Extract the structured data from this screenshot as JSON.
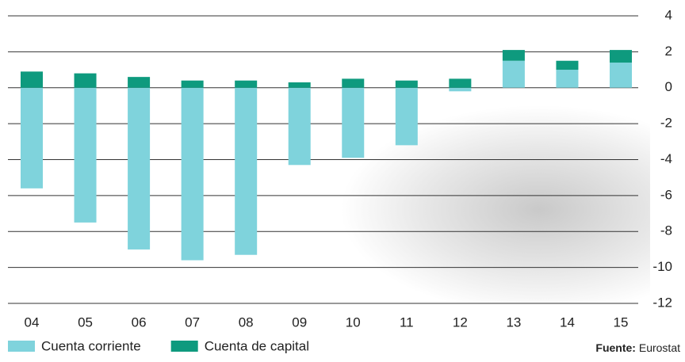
{
  "chart_data": {
    "type": "stacked_bar",
    "categories": [
      "04",
      "05",
      "06",
      "07",
      "08",
      "09",
      "10",
      "11",
      "12",
      "13",
      "14",
      "15"
    ],
    "series": [
      {
        "name": "Cuenta corriente",
        "color": "#7fd3dc",
        "values": [
          -5.6,
          -7.5,
          -9.0,
          -9.6,
          -9.3,
          -4.3,
          -3.9,
          -3.2,
          -0.2,
          1.5,
          1.0,
          1.4
        ]
      },
      {
        "name": "Cuenta de capital",
        "color": "#0e9a7e",
        "values": [
          0.9,
          0.8,
          0.6,
          0.4,
          0.4,
          0.3,
          0.5,
          0.4,
          0.5,
          0.6,
          0.5,
          0.7
        ]
      }
    ],
    "ylim": [
      -12,
      4
    ],
    "yticks": [
      -12,
      -10,
      -8,
      -6,
      -4,
      -2,
      0,
      2,
      4
    ],
    "grid": true,
    "source_label": "Fuente:",
    "source": "Eurostat"
  }
}
